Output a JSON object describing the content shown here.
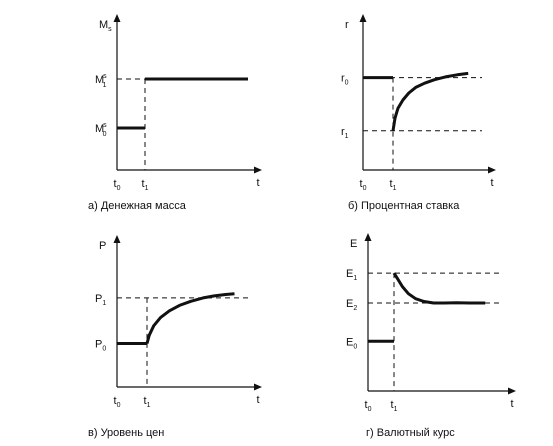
{
  "chart_data": [
    {
      "id": "money",
      "type": "line",
      "caption": "а) Денежная масса",
      "ylabel": {
        "main": "M",
        "sub": "s"
      },
      "xlabel": "t",
      "x_ticks": [
        {
          "main": "t",
          "sub": "0"
        },
        {
          "main": "t",
          "sub": "1"
        }
      ],
      "y_ticks": [
        {
          "main": "M",
          "sub": "1",
          "sup": "s"
        },
        {
          "main": "M",
          "sub": "0",
          "sup": "s"
        }
      ],
      "xlim": [
        0,
        10
      ],
      "ylim": [
        0,
        10
      ],
      "t0": 0,
      "t1": 1,
      "series": [
        {
          "x": [
            0,
            1
          ],
          "y": [
            3,
            3
          ]
        },
        {
          "x": [
            1,
            10
          ],
          "y": [
            6.5,
            6.5
          ]
        }
      ],
      "level_lines": [
        6.5
      ],
      "drop_line_to": 6.5
    },
    {
      "id": "rate",
      "type": "line",
      "caption": "б) Процентная ставка",
      "ylabel": {
        "main": "r"
      },
      "xlabel": "t",
      "x_ticks": [
        {
          "main": "t",
          "sub": "0"
        },
        {
          "main": "t",
          "sub": "1"
        }
      ],
      "y_ticks": [
        {
          "main": "r",
          "sub": "0"
        },
        {
          "main": "r",
          "sub": "1"
        }
      ],
      "xlim": [
        0,
        10
      ],
      "ylim": [
        0,
        10
      ],
      "t0": 0,
      "t1": 1,
      "series": [
        {
          "x": [
            0,
            1
          ],
          "y": [
            6.6,
            6.6
          ]
        },
        {
          "x": [
            1,
            1.2,
            1.5,
            2,
            2.6,
            3.3,
            4.2,
            5.2,
            6.3,
            7.5,
            8.6
          ],
          "y": [
            2.8,
            3.7,
            4.4,
            5.0,
            5.5,
            5.9,
            6.2,
            6.45,
            6.65,
            6.8,
            6.9
          ]
        }
      ],
      "level_lines": [
        6.6,
        2.8
      ],
      "drop_line_to": 6.6
    },
    {
      "id": "prices",
      "type": "line",
      "caption": "в) Уровень цен",
      "ylabel": {
        "main": "P"
      },
      "xlabel": "t",
      "x_ticks": [
        {
          "main": "t",
          "sub": "0"
        },
        {
          "main": "t",
          "sub": "1"
        }
      ],
      "y_ticks": [
        {
          "main": "P",
          "sub": "1"
        },
        {
          "main": "P",
          "sub": "0"
        }
      ],
      "xlim": [
        0,
        10
      ],
      "ylim": [
        0,
        10
      ],
      "t0": 0,
      "t1": 1,
      "series": [
        {
          "x": [
            0,
            1
          ],
          "y": [
            3.2,
            3.2
          ]
        },
        {
          "x": [
            1,
            1.2,
            1.6,
            2.2,
            3,
            3.9,
            4.9,
            6,
            7,
            8,
            8.8
          ],
          "y": [
            3.2,
            3.8,
            4.5,
            5.1,
            5.6,
            6.0,
            6.3,
            6.55,
            6.7,
            6.8,
            6.85
          ]
        }
      ],
      "level_lines": [
        6.55
      ],
      "drop_line_to": 6.55
    },
    {
      "id": "exchange",
      "type": "line",
      "caption": "г) Валютный курс",
      "ylabel": {
        "main": "E"
      },
      "xlabel": "t",
      "x_ticks": [
        {
          "main": "t",
          "sub": "0"
        },
        {
          "main": "t",
          "sub": "1"
        }
      ],
      "y_ticks": [
        {
          "main": "E",
          "sub": "1"
        },
        {
          "main": "E",
          "sub": "2"
        },
        {
          "main": "E",
          "sub": "0"
        }
      ],
      "xlim": [
        0,
        10
      ],
      "ylim": [
        0,
        10
      ],
      "t0": 0,
      "t1": 1,
      "series": [
        {
          "x": [
            0,
            1
          ],
          "y": [
            3.5,
            3.5
          ]
        },
        {
          "x": [
            1,
            1.3,
            1.7,
            2.2,
            2.8,
            3.5,
            4.3,
            5.2,
            6.2,
            7.3,
            8.6
          ],
          "y": [
            8.3,
            7.9,
            7.35,
            6.85,
            6.5,
            6.3,
            6.2,
            6.2,
            6.22,
            6.2,
            6.2
          ]
        }
      ],
      "level_lines": [
        8.3,
        6.2
      ],
      "drop_line_to": 8.3
    }
  ]
}
